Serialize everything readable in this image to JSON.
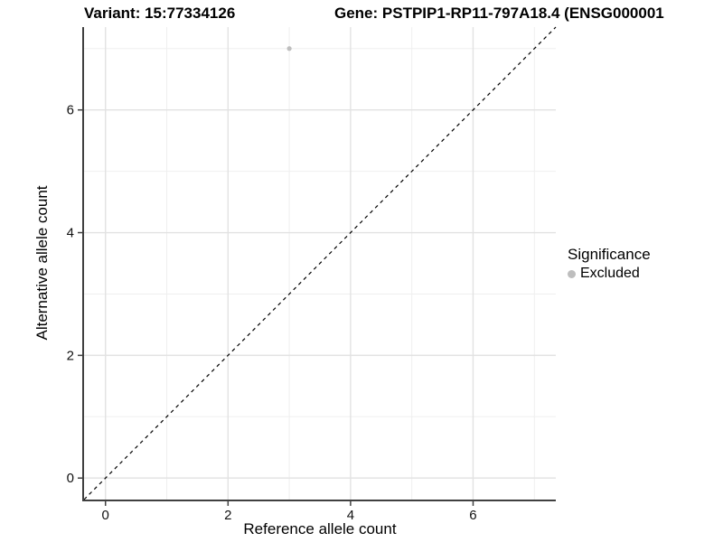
{
  "titles": {
    "variant": "Variant: 15:77334126",
    "gene": "Gene: PSTPIP1-RP11-797A18.4 (ENSG000001"
  },
  "axes": {
    "x_label": "Reference allele count",
    "y_label": "Alternative allele count",
    "x_ticks": [
      "0",
      "2",
      "4",
      "6"
    ],
    "y_ticks": [
      "0",
      "2",
      "4",
      "6"
    ]
  },
  "legend": {
    "title": "Significance",
    "items": [
      {
        "label": "Excluded",
        "color": "#bebebe"
      }
    ]
  },
  "colors": {
    "background": "#ffffff",
    "grid_major": "#e2e2e2",
    "grid_minor": "#efefef",
    "axis_line": "#404040",
    "tick_mark": "#404040",
    "tick_label": "#111111",
    "point": "#bebebe",
    "reference_line": "#000000"
  },
  "chart_data": {
    "type": "scatter",
    "title": "Variant: 15:77334126 / Gene: PSTPIP1-RP11-797A18.4 (ENSG000001",
    "xlabel": "Reference allele count",
    "ylabel": "Alternative allele count",
    "xlim": [
      -0.35,
      7.35
    ],
    "ylim": [
      -0.35,
      7.35
    ],
    "grid": {
      "major": [
        0,
        2,
        4,
        6
      ],
      "minor": [
        1,
        3,
        5,
        7
      ]
    },
    "series": [
      {
        "name": "Excluded",
        "color": "#bebebe",
        "points": [
          {
            "x": 3,
            "y": 7
          }
        ]
      }
    ],
    "reference_line": {
      "kind": "identity",
      "from": -0.35,
      "to": 7.35,
      "style": "dashed",
      "color": "#000000"
    },
    "legend_position": "right",
    "legend_title": "Significance"
  }
}
